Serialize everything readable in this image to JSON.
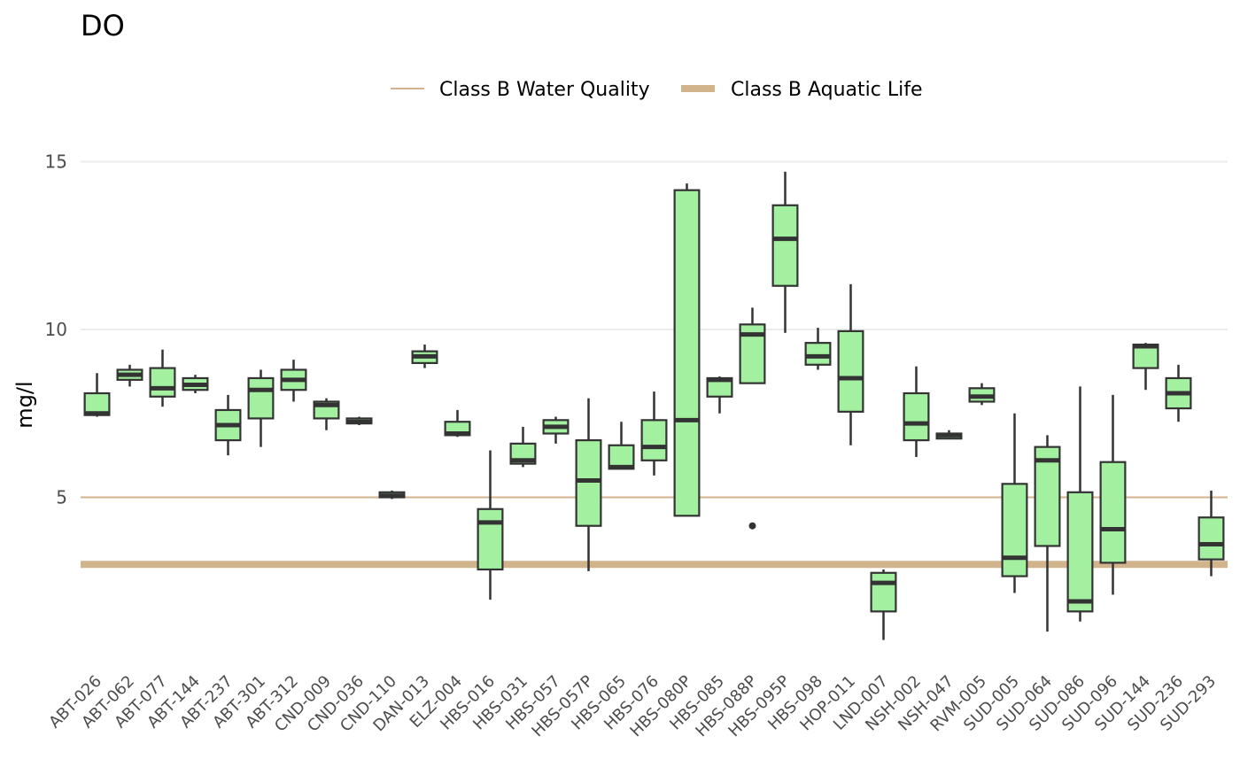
{
  "chart_data": {
    "type": "boxplot",
    "title": "DO",
    "xlabel": "",
    "ylabel": "mg/l",
    "ylim": [
      -0.5,
      16
    ],
    "yticks": [
      5,
      10,
      15
    ],
    "grid": "horizontal major lines",
    "legend_position": "top",
    "colors": {
      "box_fill": "#a3f0a0",
      "box_line": "#333333",
      "threshold": "#d2b48c",
      "grid": "#ebebeb"
    },
    "thresholds": [
      {
        "name": "Class B Water Quality",
        "value": 5,
        "style": "thin"
      },
      {
        "name": "Class B Aquatic Life",
        "value": 3,
        "style": "thick"
      }
    ],
    "categories": [
      "ABT-026",
      "ABT-062",
      "ABT-077",
      "ABT-144",
      "ABT-237",
      "ABT-301",
      "ABT-312",
      "CND-009",
      "CND-036",
      "CND-110",
      "DAN-013",
      "ELZ-004",
      "HBS-016",
      "HBS-031",
      "HBS-057",
      "HBS-057P",
      "HBS-065",
      "HBS-076",
      "HBS-080P",
      "HBS-085",
      "HBS-088P",
      "HBS-095P",
      "HBS-098",
      "HOP-011",
      "LND-007",
      "NSH-002",
      "NSH-047",
      "RVM-005",
      "SUD-005",
      "SUD-064",
      "SUD-086",
      "SUD-096",
      "SUD-144",
      "SUD-236",
      "SUD-293"
    ],
    "boxes": [
      {
        "min": 7.4,
        "q1": 7.45,
        "median": 7.5,
        "q3": 8.1,
        "max": 8.7,
        "outliers": []
      },
      {
        "min": 8.3,
        "q1": 8.5,
        "median": 8.65,
        "q3": 8.8,
        "max": 8.95,
        "outliers": []
      },
      {
        "min": 7.7,
        "q1": 8.0,
        "median": 8.25,
        "q3": 8.85,
        "max": 9.4,
        "outliers": []
      },
      {
        "min": 8.1,
        "q1": 8.2,
        "median": 8.35,
        "q3": 8.55,
        "max": 8.65,
        "outliers": []
      },
      {
        "min": 6.25,
        "q1": 6.7,
        "median": 7.15,
        "q3": 7.6,
        "max": 8.05,
        "outliers": []
      },
      {
        "min": 6.5,
        "q1": 7.35,
        "median": 8.2,
        "q3": 8.55,
        "max": 8.8,
        "outliers": []
      },
      {
        "min": 7.85,
        "q1": 8.2,
        "median": 8.5,
        "q3": 8.8,
        "max": 9.1,
        "outliers": []
      },
      {
        "min": 7.0,
        "q1": 7.35,
        "median": 7.75,
        "q3": 7.85,
        "max": 7.95,
        "outliers": []
      },
      {
        "min": 7.15,
        "q1": 7.2,
        "median": 7.25,
        "q3": 7.35,
        "max": 7.4,
        "outliers": []
      },
      {
        "min": 4.95,
        "q1": 5.0,
        "median": 5.05,
        "q3": 5.15,
        "max": 5.2,
        "outliers": []
      },
      {
        "min": 8.85,
        "q1": 9.0,
        "median": 9.2,
        "q3": 9.35,
        "max": 9.55,
        "outliers": []
      },
      {
        "min": 6.8,
        "q1": 6.85,
        "median": 6.9,
        "q3": 7.25,
        "max": 7.6,
        "outliers": []
      },
      {
        "min": 1.95,
        "q1": 2.85,
        "median": 4.25,
        "q3": 4.65,
        "max": 6.4,
        "outliers": []
      },
      {
        "min": 5.9,
        "q1": 6.0,
        "median": 6.1,
        "q3": 6.6,
        "max": 7.1,
        "outliers": []
      },
      {
        "min": 6.6,
        "q1": 6.9,
        "median": 7.1,
        "q3": 7.3,
        "max": 7.4,
        "outliers": []
      },
      {
        "min": 2.8,
        "q1": 4.15,
        "median": 5.5,
        "q3": 6.7,
        "max": 7.95,
        "outliers": []
      },
      {
        "min": 5.85,
        "q1": 5.85,
        "median": 5.9,
        "q3": 6.55,
        "max": 7.25,
        "outliers": []
      },
      {
        "min": 5.65,
        "q1": 6.1,
        "median": 6.5,
        "q3": 7.3,
        "max": 8.15,
        "outliers": []
      },
      {
        "min": 4.45,
        "q1": 4.45,
        "median": 7.3,
        "q3": 14.15,
        "max": 14.35,
        "outliers": []
      },
      {
        "min": 7.5,
        "q1": 8.0,
        "median": 8.5,
        "q3": 8.55,
        "max": 8.6,
        "outliers": []
      },
      {
        "min": 8.4,
        "q1": 8.4,
        "median": 9.85,
        "q3": 10.15,
        "max": 10.65,
        "outliers": [
          4.15
        ]
      },
      {
        "min": 9.9,
        "q1": 11.3,
        "median": 12.7,
        "q3": 13.7,
        "max": 14.7,
        "outliers": []
      },
      {
        "min": 8.8,
        "q1": 8.95,
        "median": 9.2,
        "q3": 9.6,
        "max": 10.05,
        "outliers": []
      },
      {
        "min": 6.55,
        "q1": 7.55,
        "median": 8.55,
        "q3": 9.95,
        "max": 11.35,
        "outliers": []
      },
      {
        "min": 0.75,
        "q1": 1.6,
        "median": 2.45,
        "q3": 2.75,
        "max": 2.85,
        "outliers": []
      },
      {
        "min": 6.2,
        "q1": 6.7,
        "median": 7.2,
        "q3": 8.1,
        "max": 8.9,
        "outliers": []
      },
      {
        "min": 6.75,
        "q1": 6.75,
        "median": 6.85,
        "q3": 6.9,
        "max": 7.0,
        "outliers": []
      },
      {
        "min": 7.75,
        "q1": 7.85,
        "median": 8.0,
        "q3": 8.25,
        "max": 8.4,
        "outliers": []
      },
      {
        "min": 2.15,
        "q1": 2.65,
        "median": 3.2,
        "q3": 5.4,
        "max": 7.5,
        "outliers": []
      },
      {
        "min": 1.0,
        "q1": 3.55,
        "median": 6.1,
        "q3": 6.5,
        "max": 6.85,
        "outliers": []
      },
      {
        "min": 1.3,
        "q1": 1.6,
        "median": 1.9,
        "q3": 5.15,
        "max": 8.3,
        "outliers": []
      },
      {
        "min": 2.1,
        "q1": 3.05,
        "median": 4.05,
        "q3": 6.05,
        "max": 8.05,
        "outliers": []
      },
      {
        "min": 8.2,
        "q1": 8.85,
        "median": 9.5,
        "q3": 9.55,
        "max": 9.6,
        "outliers": []
      },
      {
        "min": 7.25,
        "q1": 7.65,
        "median": 8.1,
        "q3": 8.55,
        "max": 8.95,
        "outliers": []
      },
      {
        "min": 2.65,
        "q1": 3.15,
        "median": 3.6,
        "q3": 4.4,
        "max": 5.2,
        "outliers": []
      }
    ]
  }
}
